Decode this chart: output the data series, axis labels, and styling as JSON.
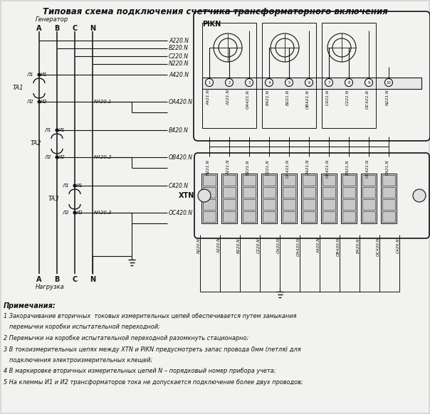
{
  "title": "Типовая схема подключения счетчика трансформаторного включения",
  "bg_color": "#d8d8d8",
  "line_color": "#111111",
  "notes_header": "Примечания:",
  "notes_lines": [
    "1 Закорачивание вторичных  токовых измерительных цепей обеспечивается путем замыкания",
    "  перемычки коробки испытательной переходной;",
    "2 Перемычки на коробке испытательной переходной разомкнуть стационарно;",
    "3 В токоизмерительных цепях между XTN и PIKN предусмотреть запас провода 0мм (петля) для",
    "  подключения электроизмерительных клещей;",
    "4 В маркировке вторичных измерительных цепей N – порядковый номер прибора учета;",
    "5 На клеммы И1 и И2 трансформаторов тока не допускается подключение более двух проводов;"
  ],
  "pikn_label": "PIKN",
  "xtn_label": "XTN",
  "generator_label": "Генератор",
  "load_label": "Нагрузка",
  "ta_labels": [
    "TA1",
    "TA2",
    "TA3"
  ],
  "phases": [
    "A",
    "B",
    "C",
    "N"
  ],
  "wire_right_labels": [
    "A220.N",
    "B220.N",
    "C220.N",
    "N220.N",
    "A420.N",
    "OA420.N",
    "B420.N",
    "OB420.N",
    "C420.N",
    "OC420.N"
  ],
  "n_labels": [
    "N420.1",
    "N420.2",
    "N420.3"
  ],
  "pikn_term_labels": [
    "A421.N",
    "A221.N",
    "OA421.N",
    "B421.N",
    "B221.N",
    "OB421.N",
    "C421.N",
    "C221.N",
    "OC421.N",
    "N221.N"
  ],
  "xtn_top_labels": [
    "N221.N",
    "A221.N",
    "B221.N",
    "C221.N",
    "OA421.N",
    "A421.N",
    "OB421.N",
    "B421.N",
    "OC421.N",
    "C421.N"
  ],
  "xtn_bot_labels": [
    "N220.N",
    "A220.N",
    "B220.N",
    "C220.N",
    "O420.N",
    "OA420.N",
    "A420.N",
    "OB420.N",
    "B420.N",
    "OC420.N",
    "C420.N"
  ]
}
